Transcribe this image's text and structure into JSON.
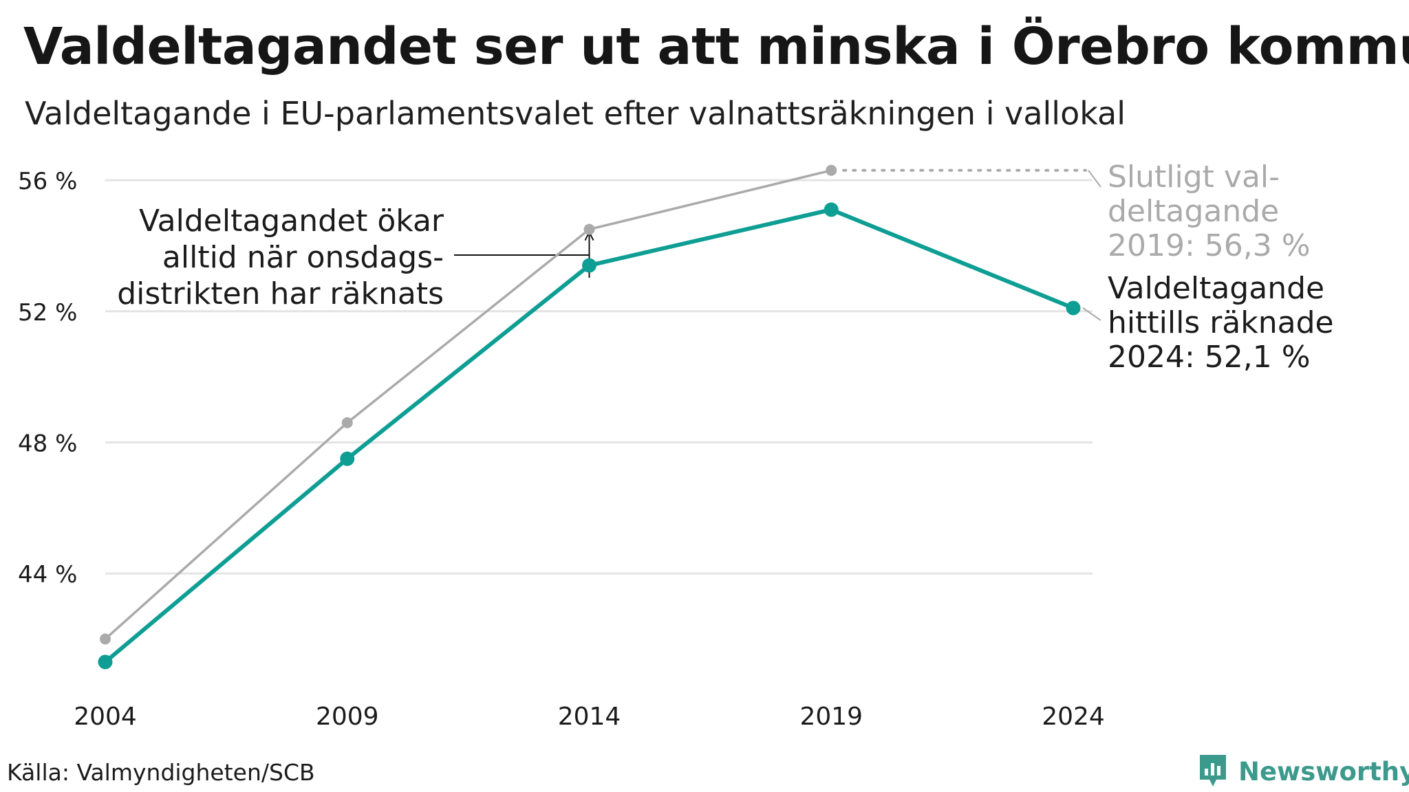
{
  "title": "Valdeltagandet ser ut att minska i Örebro kommun",
  "subtitle": "Valdeltagande i EU-parlamentsvalet efter valnattsräkningen i vallokal",
  "source": "Källa: Valmyndigheten/SCB",
  "brand": "Newsworthy",
  "colors": {
    "primary": "#0e9e94",
    "secondary": "#aaaaaa",
    "grid": "#e4e4e4",
    "text": "#1b1b1b",
    "brand": "#3c9a8c"
  },
  "chart_data": {
    "type": "line",
    "x": [
      "2004",
      "2009",
      "2014",
      "2019",
      "2024"
    ],
    "y_ticks": [
      "44 %",
      "48 %",
      "52 %",
      "56 %"
    ],
    "y_tick_values": [
      44,
      48,
      52,
      56
    ],
    "ylim": [
      40.5,
      57.0
    ],
    "grid": true,
    "series": [
      {
        "id": "final",
        "color": "#aaaaaa",
        "values": [
          42.0,
          48.6,
          54.5,
          56.3,
          null
        ]
      },
      {
        "id": "election_night",
        "color": "#0e9e94",
        "values": [
          41.3,
          47.5,
          53.4,
          55.1,
          52.1
        ]
      }
    ],
    "annotations": {
      "wednesday_note": [
        "Valdeltagandet ökar",
        "alltid när onsdags-",
        "distrikten har räknats"
      ],
      "final_label": [
        "Slutligt val-",
        "deltagande",
        "2019: 56,3 %"
      ],
      "current_label": [
        "Valdeltagande",
        "hittills räknade",
        "2024: 52,1 %"
      ]
    }
  }
}
